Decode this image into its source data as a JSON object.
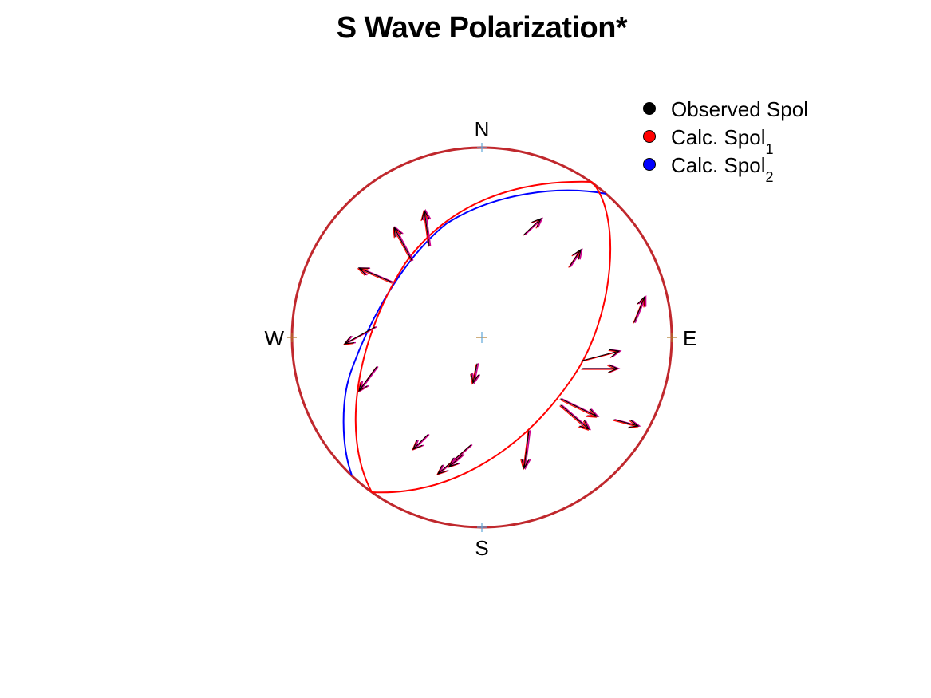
{
  "title": "S Wave Polarization*",
  "directions": {
    "north": "N",
    "south": "S",
    "east": "E",
    "west": "W"
  },
  "legend": [
    {
      "label": "Observed Spol",
      "subscript": "",
      "color": "#000000"
    },
    {
      "label": "Calc. Spol",
      "subscript": "1",
      "color": "#ff0000"
    },
    {
      "label": "Calc. Spol",
      "subscript": "2",
      "color": "#0000ff"
    }
  ],
  "colors": {
    "primitive_circle": "#c0282d",
    "nodal_plane": "#ff0000",
    "calc_spol_2_curve": "#0000ff",
    "observed_arrow": "#000000",
    "calc_arrow_1": "#ff0000",
    "calc_arrow_2": "#d1008f"
  }
}
